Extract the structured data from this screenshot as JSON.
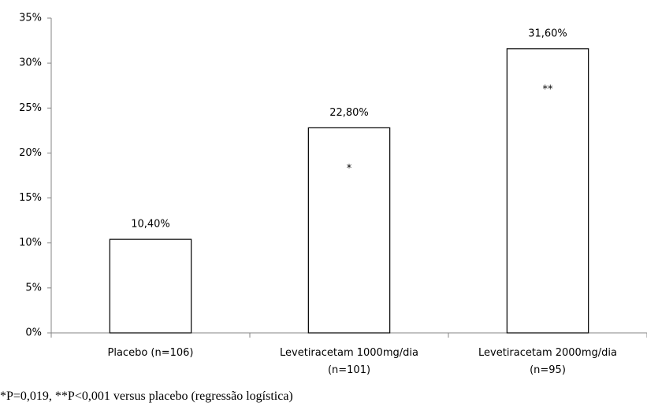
{
  "chart_data": {
    "type": "bar",
    "categories": [
      "Placebo (n=106)",
      "Levetiracetam 1000mg/dia\n(n=101)",
      "Levetiracetam 2000mg/dia\n(n=95)"
    ],
    "values": [
      10.4,
      22.8,
      31.6
    ],
    "value_labels": [
      "10,40%",
      "22,80%",
      "31,60%"
    ],
    "bar_annotations": [
      null,
      "*",
      "**"
    ],
    "color": "#ffffff",
    "edgecolor": "#000000",
    "ylim": [
      0,
      35
    ],
    "yticks": [
      {
        "value": 0,
        "label": "0%"
      },
      {
        "value": 5,
        "label": "5%"
      },
      {
        "value": 10,
        "label": "10%"
      },
      {
        "value": 15,
        "label": "15%"
      },
      {
        "value": 20,
        "label": "20%"
      },
      {
        "value": 25,
        "label": "25%"
      },
      {
        "value": 30,
        "label": "30%"
      },
      {
        "value": 35,
        "label": "35%"
      }
    ],
    "grid": false,
    "footnote": "*P=0,019, **P<0,001 versus placebo (regressão logística)"
  }
}
